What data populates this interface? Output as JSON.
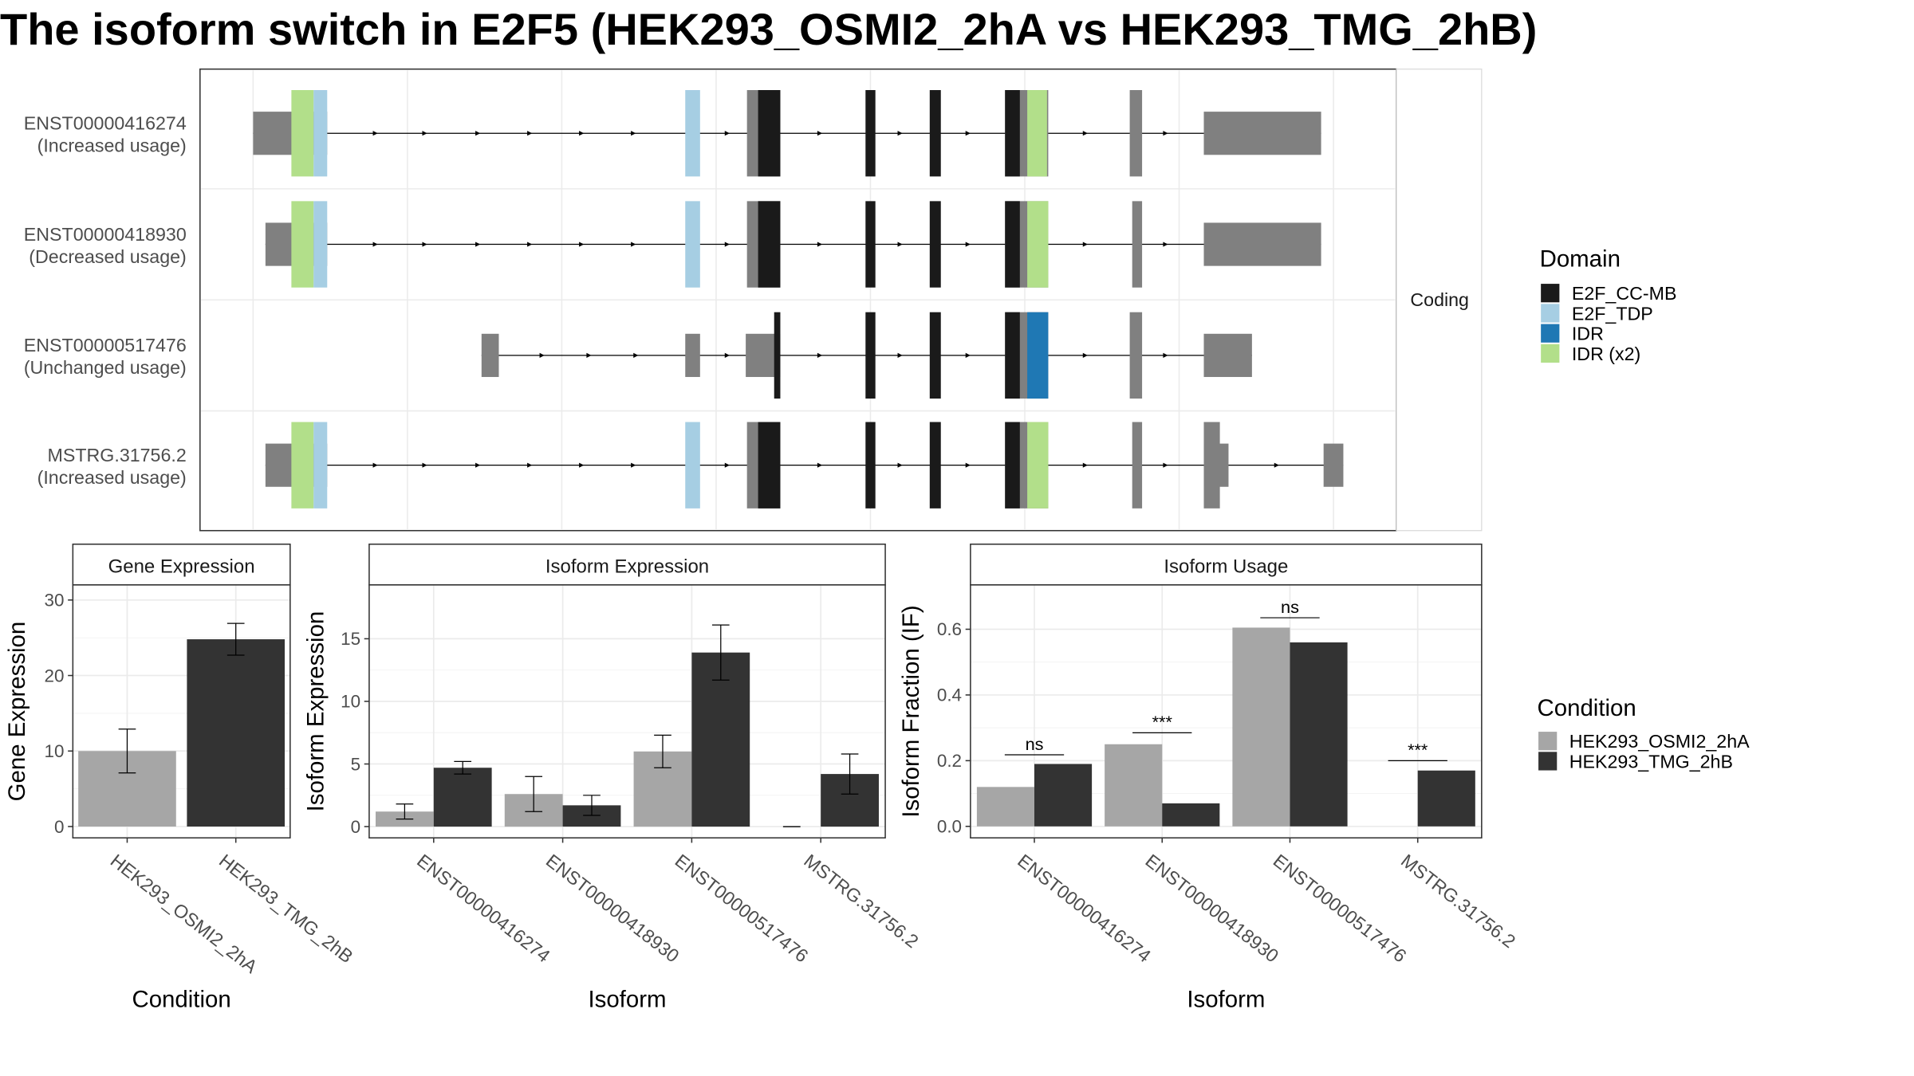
{
  "title": "The isoform switch in E2F5 (HEK293_OSMI2_2hA vs HEK293_TMG_2hB)",
  "colors": {
    "cond_a": "#a6a6a6",
    "cond_b": "#333333",
    "utr": "#808080",
    "domain_E2F_CC_MB": "#1a1a1a",
    "domain_E2F_TDP": "#a6cee3",
    "domain_IDR": "#1f78b4",
    "domain_IDR_x2": "#b2df8a"
  },
  "chart_data": [
    {
      "type": "gene_structure",
      "facet_label": "Coding",
      "legend": {
        "title": "Domain",
        "entries": [
          {
            "label": "E2F_CC-MB",
            "color": "#1a1a1a"
          },
          {
            "label": "E2F_TDP",
            "color": "#a6cee3"
          },
          {
            "label": "IDR",
            "color": "#1f78b4"
          },
          {
            "label": "IDR (x2)",
            "color": "#b2df8a"
          }
        ]
      },
      "isoforms": [
        {
          "id": "ENST00000416274",
          "status": "(Increased usage)",
          "exons": [
            {
              "x0": 205,
              "x1": 265,
              "h": 0.5,
              "color": "utr",
              "domains": [
                {
                  "x0": 236,
                  "x1": 254,
                  "color": "domain_IDR_x2"
                },
                {
                  "x0": 254,
                  "x1": 265,
                  "color": "domain_E2F_TDP"
                }
              ]
            },
            {
              "x0": 555,
              "x1": 567,
              "h": 1,
              "color": "domain_E2F_TDP",
              "domains": []
            },
            {
              "x0": 605,
              "x1": 632,
              "h": 1,
              "color": "utr",
              "domains": [
                {
                  "x0": 614,
                  "x1": 632,
                  "color": "domain_E2F_CC_MB"
                }
              ]
            },
            {
              "x0": 701,
              "x1": 709,
              "h": 1,
              "color": "domain_E2F_CC_MB",
              "domains": []
            },
            {
              "x0": 753,
              "x1": 762,
              "h": 1,
              "color": "domain_E2F_CC_MB",
              "domains": []
            },
            {
              "x0": 814,
              "x1": 849,
              "h": 1,
              "color": "utr",
              "domains": [
                {
                  "x0": 814,
                  "x1": 826,
                  "color": "domain_E2F_CC_MB"
                },
                {
                  "x0": 832,
                  "x1": 848,
                  "color": "domain_IDR_x2"
                }
              ]
            },
            {
              "x0": 915,
              "x1": 925,
              "h": 1,
              "color": "utr",
              "domains": []
            },
            {
              "x0": 975,
              "x1": 1070,
              "h": 0.5,
              "color": "utr",
              "domains": []
            }
          ],
          "intron_arrows": [
            305,
            345,
            388,
            430,
            472,
            514,
            590,
            665,
            730,
            785,
            880,
            945
          ]
        },
        {
          "id": "ENST00000418930",
          "status": "(Decreased usage)",
          "exons": [
            {
              "x0": 215,
              "x1": 265,
              "h": 0.5,
              "color": "utr",
              "domains": [
                {
                  "x0": 236,
                  "x1": 254,
                  "color": "domain_IDR_x2"
                },
                {
                  "x0": 254,
                  "x1": 265,
                  "color": "domain_E2F_TDP"
                }
              ]
            },
            {
              "x0": 555,
              "x1": 567,
              "h": 1,
              "color": "domain_E2F_TDP",
              "domains": []
            },
            {
              "x0": 605,
              "x1": 632,
              "h": 1,
              "color": "utr",
              "domains": [
                {
                  "x0": 614,
                  "x1": 632,
                  "color": "domain_E2F_CC_MB"
                }
              ]
            },
            {
              "x0": 701,
              "x1": 709,
              "h": 1,
              "color": "domain_E2F_CC_MB",
              "domains": []
            },
            {
              "x0": 753,
              "x1": 762,
              "h": 1,
              "color": "domain_E2F_CC_MB",
              "domains": []
            },
            {
              "x0": 814,
              "x1": 849,
              "h": 1,
              "color": "utr",
              "domains": [
                {
                  "x0": 814,
                  "x1": 826,
                  "color": "domain_E2F_CC_MB"
                },
                {
                  "x0": 832,
                  "x1": 849,
                  "color": "domain_IDR_x2"
                }
              ]
            },
            {
              "x0": 917,
              "x1": 925,
              "h": 1,
              "color": "utr",
              "domains": []
            },
            {
              "x0": 975,
              "x1": 1070,
              "h": 0.5,
              "color": "utr",
              "domains": []
            }
          ],
          "intron_arrows": [
            305,
            345,
            388,
            430,
            472,
            514,
            590,
            665,
            730,
            785,
            880,
            945
          ]
        },
        {
          "id": "ENST00000517476",
          "status": "(Unchanged usage)",
          "exons": [
            {
              "x0": 390,
              "x1": 404,
              "h": 0.5,
              "color": "utr",
              "domains": []
            },
            {
              "x0": 555,
              "x1": 567,
              "h": 0.5,
              "color": "utr",
              "domains": []
            },
            {
              "x0": 604,
              "x1": 632,
              "h": 0.5,
              "color": "utr",
              "domains": [
                {
                  "x0": 627,
                  "x1": 632,
                  "color": "domain_E2F_CC_MB"
                }
              ]
            },
            {
              "x0": 701,
              "x1": 709,
              "h": 1,
              "color": "domain_E2F_CC_MB",
              "domains": []
            },
            {
              "x0": 753,
              "x1": 762,
              "h": 1,
              "color": "domain_E2F_CC_MB",
              "domains": []
            },
            {
              "x0": 814,
              "x1": 849,
              "h": 1,
              "color": "utr",
              "domains": [
                {
                  "x0": 814,
                  "x1": 826,
                  "color": "domain_E2F_CC_MB"
                },
                {
                  "x0": 832,
                  "x1": 849,
                  "color": "domain_IDR"
                }
              ]
            },
            {
              "x0": 915,
              "x1": 925,
              "h": 1,
              "color": "utr",
              "domains": []
            },
            {
              "x0": 975,
              "x1": 1014,
              "h": 0.5,
              "color": "utr",
              "domains": []
            }
          ],
          "intron_arrows": [
            440,
            478,
            516,
            590,
            665,
            730,
            785,
            880,
            945
          ]
        },
        {
          "id": "MSTRG.31756.2",
          "status": "(Increased usage)",
          "exons": [
            {
              "x0": 215,
              "x1": 265,
              "h": 0.5,
              "color": "utr",
              "domains": [
                {
                  "x0": 236,
                  "x1": 254,
                  "color": "domain_IDR_x2"
                },
                {
                  "x0": 254,
                  "x1": 265,
                  "color": "domain_E2F_TDP"
                }
              ]
            },
            {
              "x0": 555,
              "x1": 567,
              "h": 1,
              "color": "domain_E2F_TDP",
              "domains": []
            },
            {
              "x0": 605,
              "x1": 632,
              "h": 1,
              "color": "utr",
              "domains": [
                {
                  "x0": 614,
                  "x1": 632,
                  "color": "domain_E2F_CC_MB"
                }
              ]
            },
            {
              "x0": 701,
              "x1": 709,
              "h": 1,
              "color": "domain_E2F_CC_MB",
              "domains": []
            },
            {
              "x0": 753,
              "x1": 762,
              "h": 1,
              "color": "domain_E2F_CC_MB",
              "domains": []
            },
            {
              "x0": 814,
              "x1": 849,
              "h": 1,
              "color": "utr",
              "domains": [
                {
                  "x0": 814,
                  "x1": 826,
                  "color": "domain_E2F_CC_MB"
                },
                {
                  "x0": 832,
                  "x1": 849,
                  "color": "domain_IDR_x2"
                }
              ]
            },
            {
              "x0": 917,
              "x1": 925,
              "h": 1,
              "color": "utr",
              "domains": []
            },
            {
              "x0": 975,
              "x1": 995,
              "h": 0.5,
              "color": "utr",
              "domains": [
                {
                  "x0": 975,
                  "x1": 988,
                  "color": "utr",
                  "h": 1
                }
              ]
            },
            {
              "x0": 1072,
              "x1": 1088,
              "h": 0.5,
              "color": "utr",
              "domains": []
            }
          ],
          "intron_arrows": [
            305,
            345,
            388,
            430,
            472,
            514,
            590,
            665,
            730,
            785,
            880,
            945,
            1035
          ]
        }
      ]
    },
    {
      "type": "bar",
      "facet_label": "Gene Expression",
      "xlabel": "Condition",
      "ylabel": "Gene Expression",
      "ylim": [
        -1.5,
        32
      ],
      "yticks": [
        0,
        10,
        20,
        30
      ],
      "categories": [
        "HEK293_OSMI2_2hA",
        "HEK293_TMG_2hB"
      ],
      "series": [
        {
          "values": [
            10.0,
            24.8
          ],
          "err_low": [
            7.1,
            22.7
          ],
          "err_high": [
            12.9,
            26.9
          ]
        }
      ]
    },
    {
      "type": "bar",
      "facet_label": "Isoform Expression",
      "xlabel": "Isoform",
      "ylabel": "Isoform Expression",
      "ylim": [
        -0.9,
        19.3
      ],
      "yticks": [
        0,
        5,
        10,
        15
      ],
      "categories": [
        "ENST00000416274",
        "ENST00000418930",
        "ENST00000517476",
        "MSTRG.31756.2"
      ],
      "series": [
        {
          "name": "HEK293_OSMI2_2hA",
          "values": [
            1.2,
            2.6,
            6.0,
            0.0
          ],
          "err_low": [
            0.6,
            1.2,
            4.7,
            0.0
          ],
          "err_high": [
            1.8,
            4.0,
            7.3,
            0.0
          ]
        },
        {
          "name": "HEK293_TMG_2hB",
          "values": [
            4.7,
            1.7,
            13.9,
            4.2
          ],
          "err_low": [
            4.2,
            0.9,
            11.7,
            2.6
          ],
          "err_high": [
            5.2,
            2.5,
            16.1,
            5.8
          ]
        }
      ]
    },
    {
      "type": "bar",
      "facet_label": "Isoform Usage",
      "xlabel": "Isoform",
      "ylabel": "Isoform Fraction (IF)",
      "ylim": [
        -0.035,
        0.735
      ],
      "yticks": [
        "0.0",
        "0.2",
        "0.4",
        "0.6"
      ],
      "categories": [
        "ENST00000416274",
        "ENST00000418930",
        "ENST00000517476",
        "MSTRG.31756.2"
      ],
      "series": [
        {
          "name": "HEK293_OSMI2_2hA",
          "values": [
            0.12,
            0.25,
            0.605,
            0.0
          ]
        },
        {
          "name": "HEK293_TMG_2hB",
          "values": [
            0.19,
            0.07,
            0.56,
            0.17
          ]
        }
      ],
      "significance": [
        {
          "label": "ns",
          "y": 0.218
        },
        {
          "label": "***",
          "y": 0.285
        },
        {
          "label": "ns",
          "y": 0.635
        },
        {
          "label": "***",
          "y": 0.2
        }
      ]
    }
  ],
  "condition_legend": {
    "title": "Condition",
    "entries": [
      {
        "label": "HEK293_OSMI2_2hA",
        "color": "#a6a6a6"
      },
      {
        "label": "HEK293_TMG_2hB",
        "color": "#333333"
      }
    ]
  }
}
